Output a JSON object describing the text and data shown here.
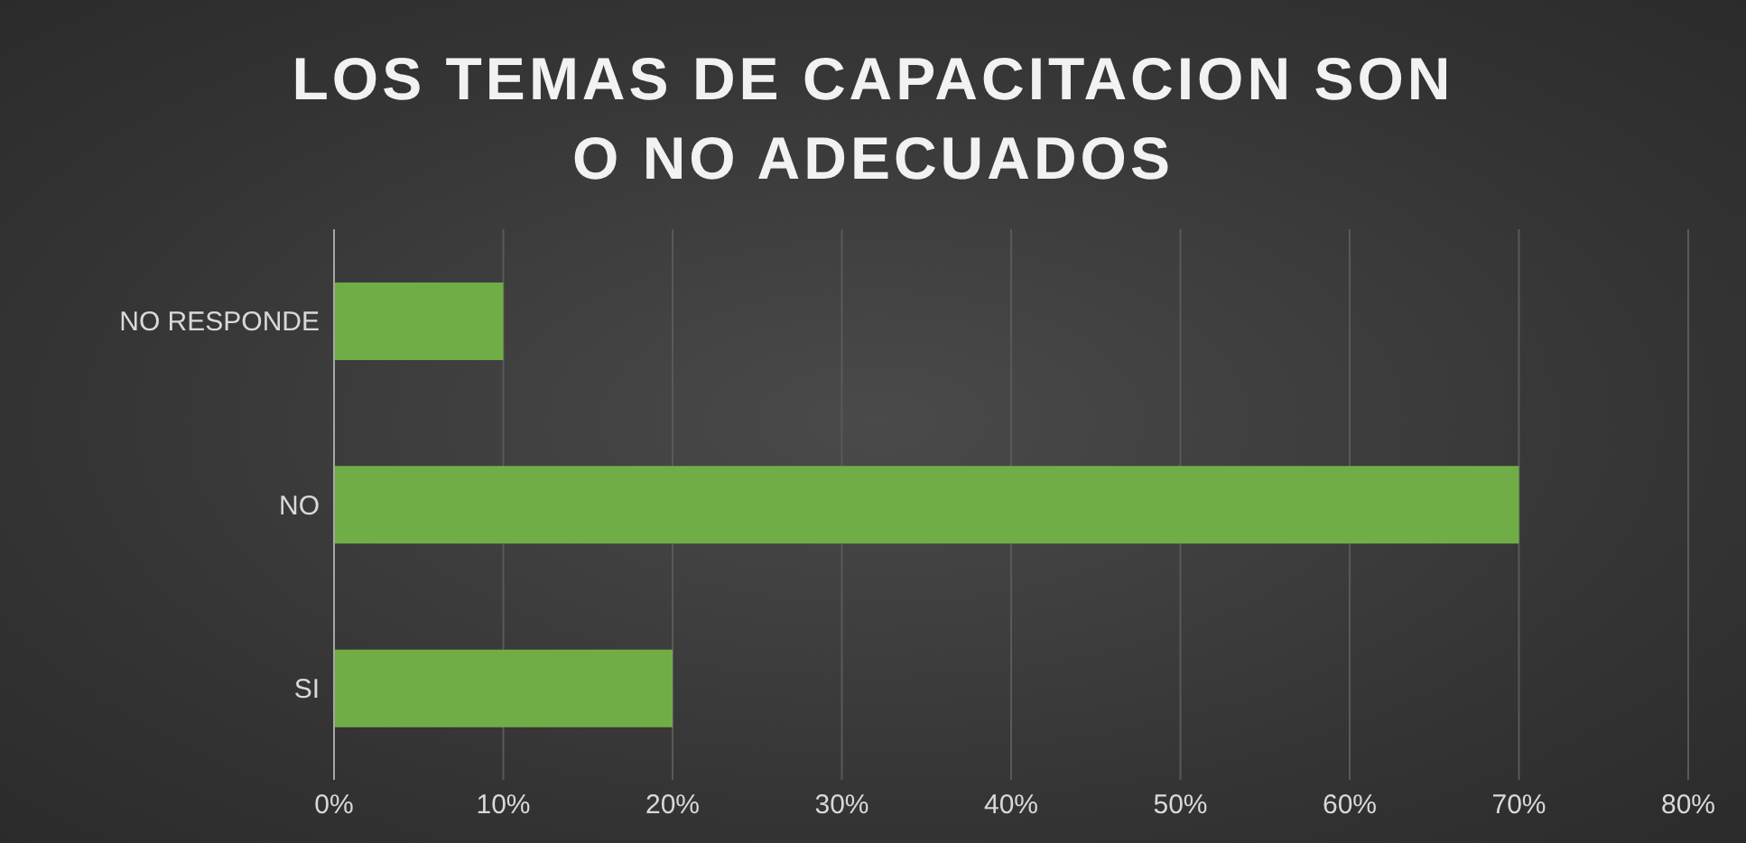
{
  "chart_data": {
    "type": "bar",
    "orientation": "horizontal",
    "title": "LOS TEMAS DE CAPACITACION SON O NO ADECUADOS",
    "categories": [
      "NO RESPONDE",
      "NO",
      "SI"
    ],
    "values": [
      10,
      70,
      20
    ],
    "color": "#70ad47",
    "xlim": [
      0,
      80
    ],
    "xticks": [
      {
        "value": 0,
        "label": "0%"
      },
      {
        "value": 10,
        "label": "10%"
      },
      {
        "value": 20,
        "label": "20%"
      },
      {
        "value": 30,
        "label": "30%"
      },
      {
        "value": 40,
        "label": "40%"
      },
      {
        "value": 50,
        "label": "50%"
      },
      {
        "value": 60,
        "label": "60%"
      },
      {
        "value": 70,
        "label": "70%"
      },
      {
        "value": 80,
        "label": "80%"
      }
    ],
    "grid": "x"
  }
}
